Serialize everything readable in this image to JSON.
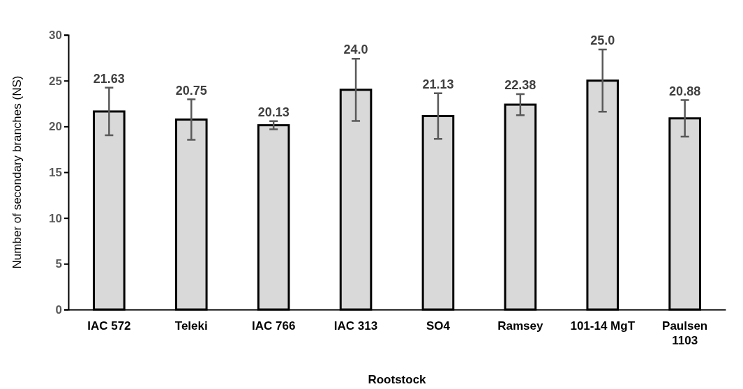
{
  "chart_data": {
    "type": "bar",
    "xlabel": "Rootstock",
    "ylabel": "Number of secondary branches (NS)",
    "categories": [
      "IAC 572",
      "Teleki",
      "IAC 766",
      "IAC 313",
      "SO4",
      "Ramsey",
      "101-14 MgT",
      "Paulsen 1103"
    ],
    "values": [
      21.63,
      20.75,
      20.13,
      24.0,
      21.13,
      22.38,
      25.0,
      20.88
    ],
    "value_labels": [
      "21.63",
      "20.75",
      "20.13",
      "24.0",
      "21.13",
      "22.38",
      "25.0",
      "20.88"
    ],
    "errors": [
      2.6,
      2.2,
      0.45,
      3.4,
      2.5,
      1.15,
      3.4,
      2.0
    ],
    "color": "#d9d9d9",
    "ylim": [
      0,
      30
    ],
    "yticks": [
      0,
      5,
      10,
      15,
      20,
      25,
      30
    ],
    "grid": false
  }
}
